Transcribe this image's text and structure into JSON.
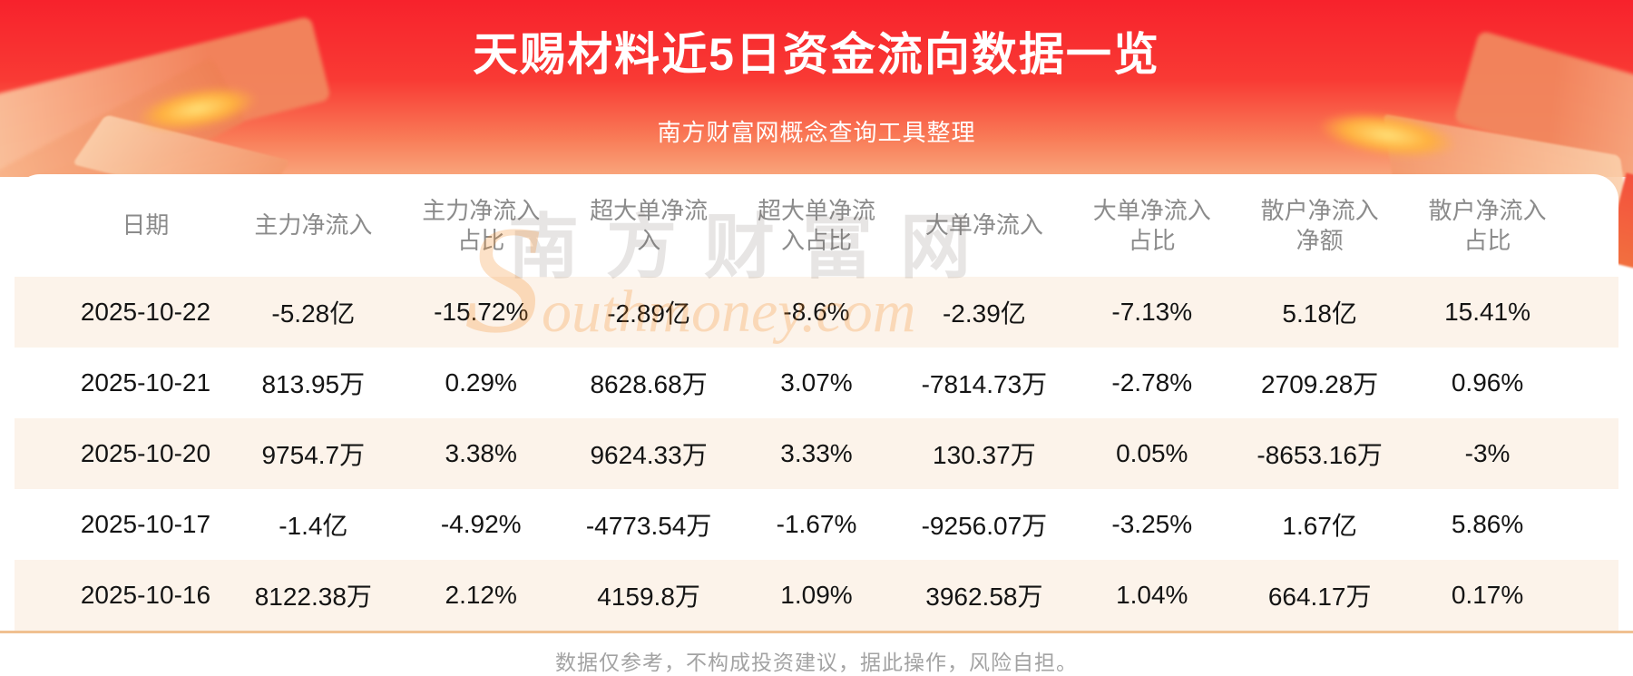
{
  "banner": {
    "title": "天赐材料近5日资金流向数据一览",
    "subtitle": "南方财富网概念查询工具整理"
  },
  "chart_data": {
    "type": "table",
    "title": "天赐材料近5日资金流向数据一览",
    "columns": [
      "日期",
      "主力净流入",
      "主力净流入占比",
      "超大单净流入",
      "超大单净流入占比",
      "大单净流入",
      "大单净流入占比",
      "散户净流入净额",
      "散户净流入占比"
    ],
    "rows": [
      [
        "2025-10-22",
        "-5.28亿",
        "-15.72%",
        "-2.89亿",
        "-8.6%",
        "-2.39亿",
        "-7.13%",
        "5.18亿",
        "15.41%"
      ],
      [
        "2025-10-21",
        "813.95万",
        "0.29%",
        "8628.68万",
        "3.07%",
        "-7814.73万",
        "-2.78%",
        "2709.28万",
        "0.96%"
      ],
      [
        "2025-10-20",
        "9754.7万",
        "3.38%",
        "9624.33万",
        "3.33%",
        "130.37万",
        "0.05%",
        "-8653.16万",
        "-3%"
      ],
      [
        "2025-10-17",
        "-1.4亿",
        "-4.92%",
        "-4773.54万",
        "-1.67%",
        "-9256.07万",
        "-3.25%",
        "1.67亿",
        "5.86%"
      ],
      [
        "2025-10-16",
        "8122.38万",
        "2.12%",
        "4159.8万",
        "1.09%",
        "3962.58万",
        "1.04%",
        "664.17万",
        "0.17%"
      ]
    ]
  },
  "watermark": {
    "cn": "南方财富网",
    "en": "Southmoney.com"
  },
  "footer": {
    "disclaimer": "数据仅参考，不构成投资建议，据此操作，风险自担。"
  },
  "colors": {
    "banner_red_top": "#f7222c",
    "banner_red_bottom": "#f9a77d",
    "row_stripe": "#fcf3ea",
    "divider_orange": "#f0c091",
    "header_text": "#8b8b8b",
    "cell_text": "#141414",
    "footer_text": "#a3a3a3",
    "title_text": "#ffffff"
  }
}
